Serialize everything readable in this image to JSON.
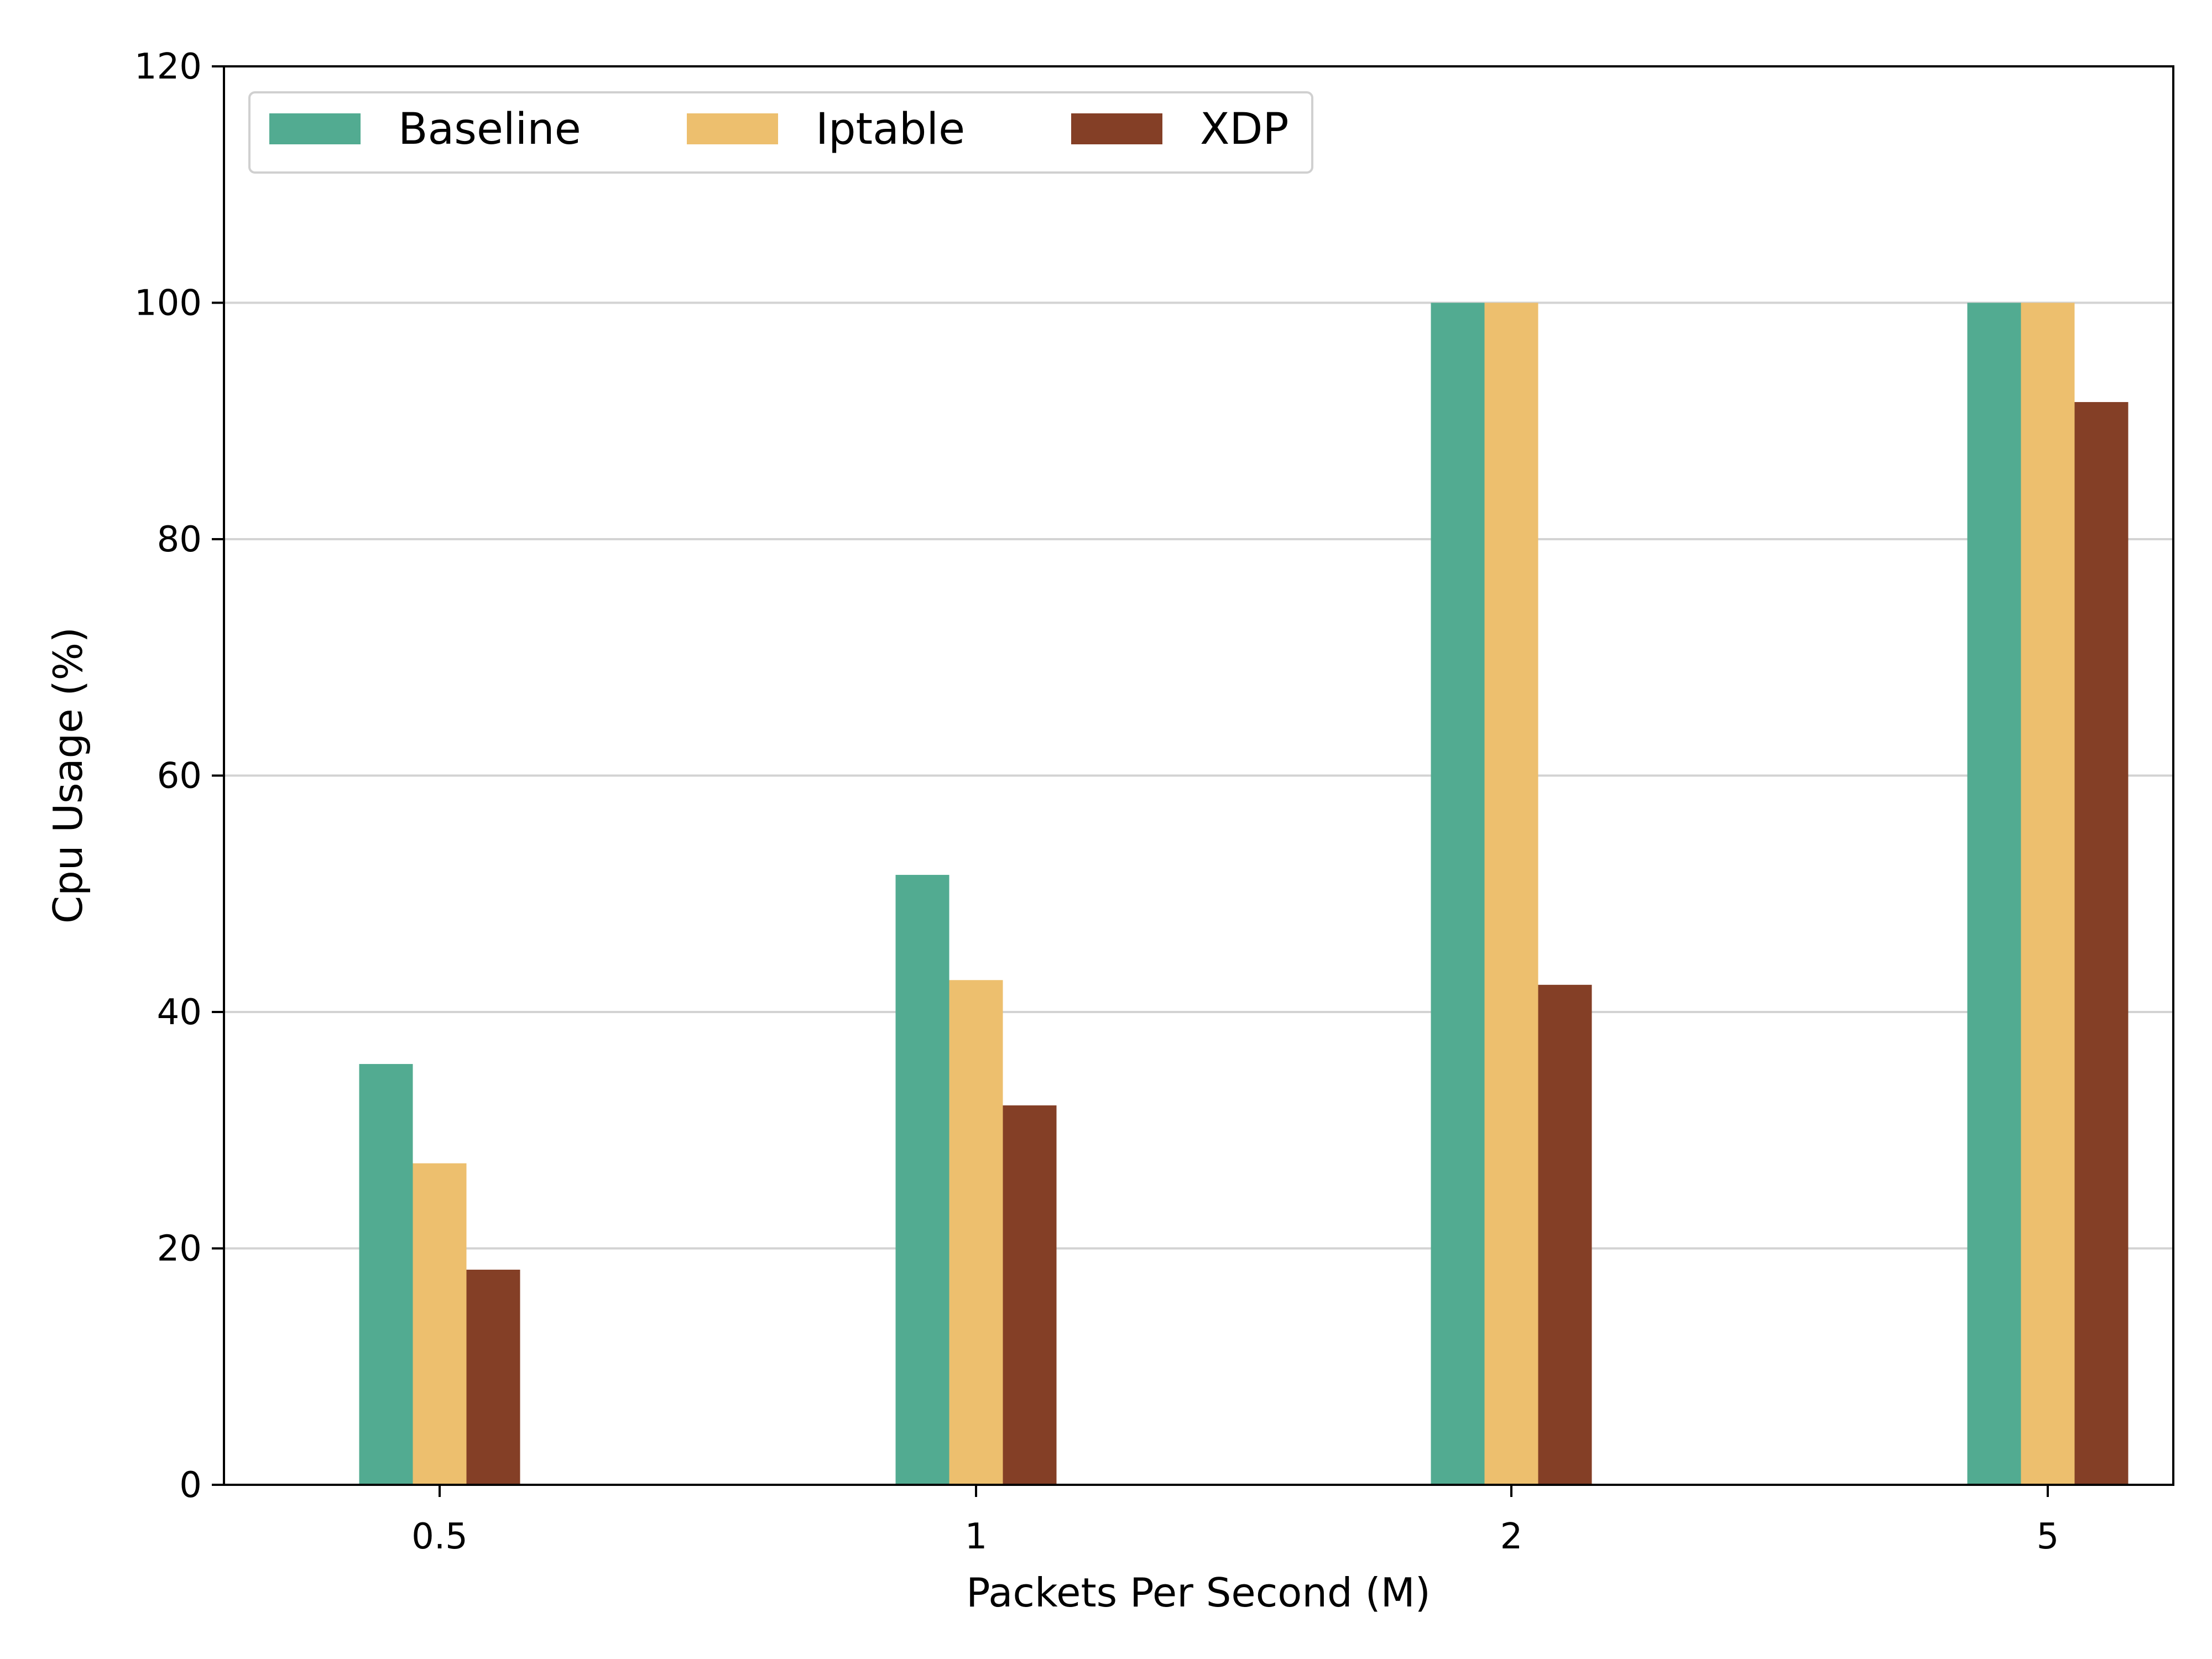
{
  "chart_data": {
    "type": "bar",
    "title": "",
    "xlabel": "Packets Per Second (M)",
    "ylabel": "Cpu Usage (%)",
    "categories": [
      "0.5",
      "1",
      "2",
      "5"
    ],
    "ylim": [
      0,
      120
    ],
    "yticks": [
      "0",
      "20",
      "40",
      "60",
      "80",
      "100",
      "120"
    ],
    "grid": "horizontal",
    "legend_position": "top-left",
    "series": [
      {
        "name": "Baseline",
        "color": "#52AB91",
        "values": [
          35.6,
          51.6,
          100,
          100
        ]
      },
      {
        "name": "Iptable",
        "color": "#EDBF6E",
        "values": [
          27.2,
          42.7,
          100,
          100
        ]
      },
      {
        "name": "XDP",
        "color": "#843F26",
        "values": [
          18.2,
          32.1,
          42.3,
          91.6
        ]
      }
    ]
  }
}
